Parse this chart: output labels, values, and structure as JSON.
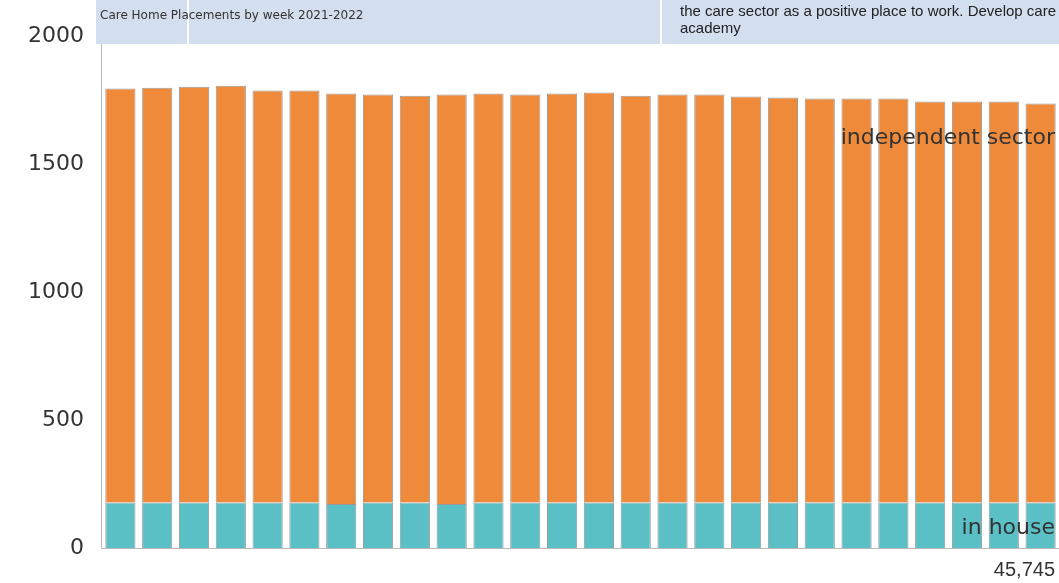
{
  "chart_data": {
    "type": "bar",
    "title": "Care Home Placements by week 2021-2022",
    "stacked": true,
    "categories": [
      null,
      null,
      null,
      null,
      null,
      null,
      null,
      null,
      null,
      null,
      null,
      null,
      null,
      null,
      null,
      null,
      null,
      null,
      null,
      null,
      null,
      null,
      null,
      null,
      null,
      null
    ],
    "series": [
      {
        "name": "in house",
        "color": "#5bbfc6",
        "values": [
          178,
          178,
          178,
          178,
          178,
          178,
          172,
          178,
          178,
          172,
          178,
          178,
          178,
          178,
          178,
          178,
          178,
          178,
          178,
          178,
          178,
          178,
          178,
          178,
          178,
          178
        ]
      },
      {
        "name": "independent sector",
        "color": "#ee8a3a",
        "values": [
          1617,
          1620,
          1624,
          1628,
          1609,
          1609,
          1603,
          1593,
          1589,
          1599,
          1597,
          1593,
          1597,
          1601,
          1589,
          1593,
          1593,
          1586,
          1582,
          1578,
          1578,
          1578,
          1566,
          1566,
          1566,
          1558
        ]
      }
    ],
    "ylim": [
      0,
      2000
    ],
    "yticks": [
      0,
      500,
      1000,
      1500,
      2000
    ],
    "grid": false,
    "legend": false,
    "annotations": [
      "the care sector as a positive place to work.  Develop care academy",
      "45,745"
    ]
  }
}
